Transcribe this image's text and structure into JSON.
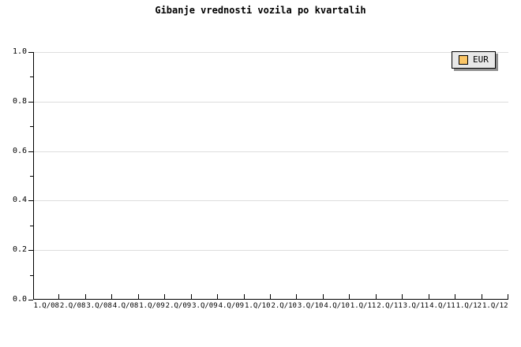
{
  "chart_data": {
    "type": "line",
    "title": "Gibanje vrednosti vozila po kvartalih",
    "categories": [
      "1.Q/08",
      "2.Q/08",
      "3.Q/08",
      "4.Q/08",
      "1.Q/09",
      "2.Q/09",
      "3.Q/09",
      "4.Q/09",
      "1.Q/10",
      "2.Q/10",
      "3.Q/10",
      "4.Q/10",
      "1.Q/11",
      "2.Q/11",
      "3.Q/11",
      "4.Q/11",
      "1.Q/12",
      "1.Q/12"
    ],
    "series": [
      {
        "name": "EUR",
        "values": []
      }
    ],
    "xlabel": "",
    "ylabel": "",
    "ylim": [
      0,
      1.0
    ],
    "y_ticks": [
      0,
      0.2,
      0.4,
      0.6,
      0.8,
      1.0
    ],
    "y_tick_labels": [
      "0.0",
      "0.2",
      "0.4",
      "0.6",
      "0.8",
      "1.0"
    ],
    "y_minor_ticks": [
      0.1,
      0.3,
      0.5,
      0.7,
      0.9
    ],
    "grid": "horizontal lines at major y ticks",
    "legend_position": "top-right",
    "note": "plot area is empty - no data points drawn"
  },
  "colors": {
    "background": "#ffffff",
    "axis": "#000000",
    "grid_line": "#dddddd",
    "text": "#000000",
    "legend_bg": "#e8e8e8",
    "legend_border": "#000000",
    "legend_shadow": "#909090",
    "series_swatch": "#fac566"
  }
}
